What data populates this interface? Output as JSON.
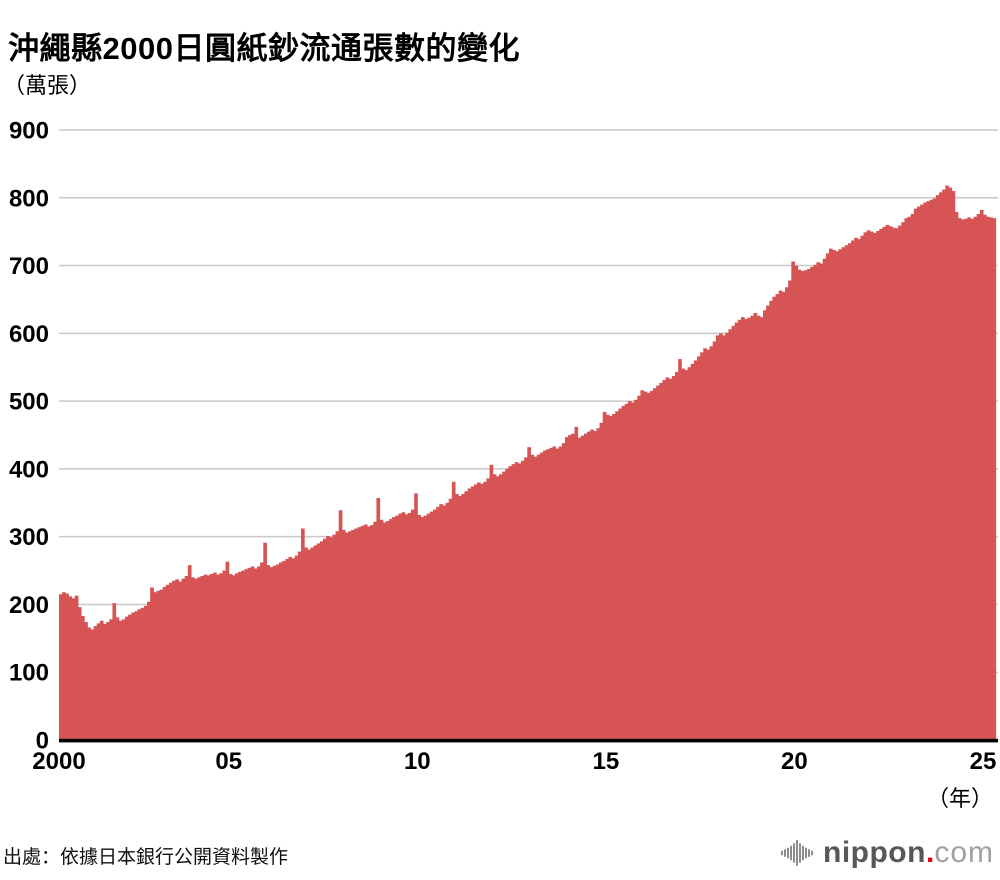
{
  "header": {
    "title": "沖繩縣2000日圓紙鈔流通張數的變化",
    "unit_label": "（萬張）"
  },
  "footer": {
    "source": "出處：依據日本銀行公開資料製作",
    "logo": {
      "name": "nippon",
      "dot": ".",
      "tld": "com"
    }
  },
  "colors": {
    "area": "#d75455",
    "gridline": "#c9c9c9",
    "axis": "#000000",
    "label": "#000000",
    "logo_gray": "#595757",
    "logo_light_gray": "#9fa0a0",
    "logo_red": "#e60012",
    "logo_mark_gray": "#8c8c8c"
  },
  "chart_data": {
    "type": "area",
    "title": "沖繩縣2000日圓紙鈔流通張數的變化",
    "ylabel": "（萬張）",
    "xlabel": "（年）",
    "ylim": [
      0,
      900
    ],
    "y_ticks": [
      0,
      100,
      200,
      300,
      400,
      500,
      600,
      700,
      800,
      900
    ],
    "grid": "horizontal",
    "legend": "none",
    "frequency": "monthly",
    "series_start": "2000-07",
    "series_end": "2025-04",
    "x_ticks": [
      {
        "label": "2000",
        "month_offset": 0
      },
      {
        "label": "05",
        "month_offset": 54
      },
      {
        "label": "10",
        "month_offset": 114
      },
      {
        "label": "15",
        "month_offset": 174
      },
      {
        "label": "20",
        "month_offset": 234
      },
      {
        "label": "25",
        "month_offset": 294
      }
    ],
    "x_axis_unit": "（年）",
    "values": [
      215,
      218,
      216,
      212,
      209,
      213,
      196,
      183,
      174,
      166,
      163,
      168,
      172,
      176,
      171,
      174,
      178,
      202,
      181,
      176,
      178,
      182,
      185,
      188,
      190,
      193,
      195,
      198,
      204,
      225,
      218,
      220,
      222,
      226,
      229,
      232,
      235,
      237,
      234,
      238,
      242,
      258,
      240,
      238,
      240,
      242,
      244,
      243,
      245,
      247,
      244,
      246,
      250,
      263,
      245,
      243,
      246,
      248,
      250,
      252,
      254,
      256,
      253,
      256,
      262,
      291,
      258,
      255,
      257,
      259,
      262,
      264,
      267,
      270,
      268,
      272,
      278,
      312,
      284,
      281,
      284,
      287,
      290,
      293,
      297,
      301,
      299,
      303,
      308,
      339,
      310,
      306,
      308,
      310,
      312,
      314,
      316,
      318,
      315,
      317,
      322,
      357,
      325,
      321,
      323,
      326,
      329,
      331,
      334,
      336,
      333,
      335,
      340,
      364,
      332,
      329,
      331,
      334,
      337,
      340,
      344,
      348,
      346,
      350,
      356,
      381,
      363,
      360,
      363,
      367,
      371,
      374,
      377,
      380,
      378,
      381,
      386,
      406,
      392,
      389,
      392,
      396,
      400,
      404,
      407,
      410,
      408,
      412,
      417,
      432,
      421,
      418,
      421,
      424,
      427,
      429,
      431,
      433,
      430,
      433,
      438,
      447,
      450,
      452,
      462,
      446,
      449,
      452,
      455,
      458,
      456,
      460,
      468,
      484,
      480,
      478,
      481,
      485,
      489,
      493,
      496,
      500,
      498,
      502,
      508,
      516,
      514,
      512,
      515,
      519,
      523,
      527,
      531,
      535,
      533,
      537,
      543,
      562,
      548,
      546,
      550,
      555,
      560,
      566,
      572,
      578,
      576,
      581,
      588,
      597,
      600,
      597,
      601,
      606,
      611,
      616,
      620,
      624,
      621,
      623,
      626,
      630,
      626,
      624,
      634,
      641,
      648,
      654,
      658,
      663,
      661,
      668,
      678,
      706,
      700,
      694,
      692,
      693,
      695,
      698,
      701,
      705,
      703,
      710,
      718,
      725,
      723,
      721,
      724,
      727,
      730,
      733,
      737,
      741,
      739,
      744,
      749,
      752,
      750,
      748,
      751,
      754,
      757,
      760,
      758,
      756,
      755,
      759,
      764,
      770,
      772,
      776,
      784,
      787,
      790,
      793,
      795,
      797,
      799,
      804,
      808,
      812,
      818,
      815,
      810,
      779,
      770,
      768,
      769,
      771,
      769,
      772,
      776,
      782,
      775,
      772,
      771,
      770
    ]
  }
}
